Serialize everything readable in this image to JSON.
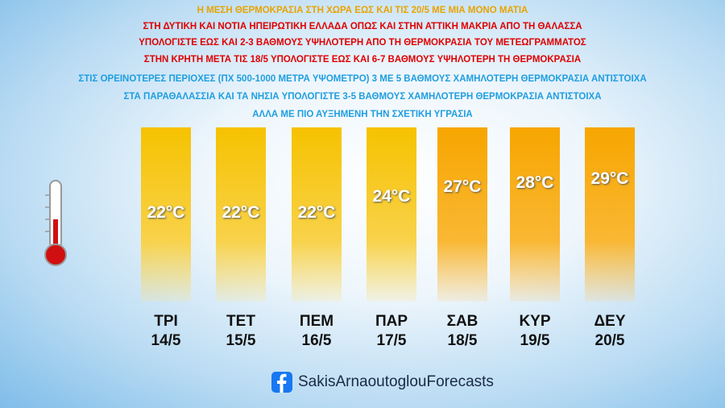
{
  "header": {
    "lines": [
      "Η ΜΕΣΗ ΘΕΡΜΟΚΡΑΣΙΑ ΣΤΗ ΧΩΡΑ ΕΩΣ ΚΑΙ ΤΙΣ 20/5 ΜΕ ΜΙΑ ΜΟΝΟ ΜΑΤΙΑ",
      "ΣΤΗ ΔΥΤΙΚΗ ΚΑΙ ΝΟΤΙΑ ΗΠΕΙΡΩΤΙΚΗ ΕΛΛΑΔΑ ΟΠΩΣ ΚΑΙ ΣΤΗΝ ΑΤΤΙΚΗ  ΜΑΚΡΙΑ ΑΠΟ ΤΗ ΘΑΛΑΣΣΑ",
      "ΥΠΟΛΟΓΙΣΤΕ ΕΩΣ ΚΑΙ 2-3 ΒΑΘΜΟΥΣ ΥΨΗΛΟΤΕΡΗ ΑΠΟ ΤΗ ΘΕΡΜΟΚΡΑΣΙΑ ΤΟΥ ΜΕΤΕΩΓΡΑΜΜΑΤΟΣ",
      "ΣΤΗΝ ΚΡΗΤΗ ΜΕΤΑ ΤΙΣ 18/5 ΥΠΟΛΟΓΙΣΤΕ ΕΩΣ ΚΑΙ 6-7 ΒΑΘΜΟΥΣ ΥΨΗΛΟΤΕΡΗ ΤΗ ΘΕΡΜΟΚΡΑΣΙΑ",
      "ΣΤΙΣ ΟΡΕΙΝΟΤΕΡΕΣ ΠΕΡΙΟΧΕΣ (ΠΧ 500-1000 ΜΕΤΡΑ ΥΨΟΜΕΤΡΟ) 3 ΜΕ 5 ΒΑΘΜΟΥΣ ΧΑΜΗΛΟΤΕΡΗ ΘΕΡΜΟΚΡΑΣΙΑ ΑΝΤΙΣΤΟΙΧΑ",
      "ΣΤΑ ΠΑΡΑΘΑΛΑΣΣΙΑ ΚΑΙ ΤΑ ΝΗΣΙΑ ΥΠΟΛΟΓΙΣΤΕ 3-5 ΒΑΘΜΟΥΣ ΧΑΜΗΛΟΤΕΡΗ ΘΕΡΜΟΚΡΑΣΙΑ ΑΝΤΙΣΤΟΙΧΑ",
      "ΑΛΛΑ ΜΕ ΠΙΟ ΑΥΞΗΜΕΝΗ ΤΗΝ ΣΧΕΤΙΚΗ ΥΓΡΑΣΙΑ"
    ]
  },
  "days": [
    {
      "day": "ΤΡΙ",
      "date": "14/5",
      "temp": "22°C"
    },
    {
      "day": "ΤΕΤ",
      "date": "15/5",
      "temp": "22°C"
    },
    {
      "day": "ΠΕΜ",
      "date": "16/5",
      "temp": "22°C"
    },
    {
      "day": "ΠΑΡ",
      "date": "17/5",
      "temp": "24°C"
    },
    {
      "day": "ΣΑΒ",
      "date": "18/5",
      "temp": "27°C"
    },
    {
      "day": "ΚΥΡ",
      "date": "19/5",
      "temp": "28°C"
    },
    {
      "day": "ΔΕΥ",
      "date": "20/5",
      "temp": "29°C"
    }
  ],
  "footer": {
    "page": "SakisArnaoutoglouForecasts"
  }
}
